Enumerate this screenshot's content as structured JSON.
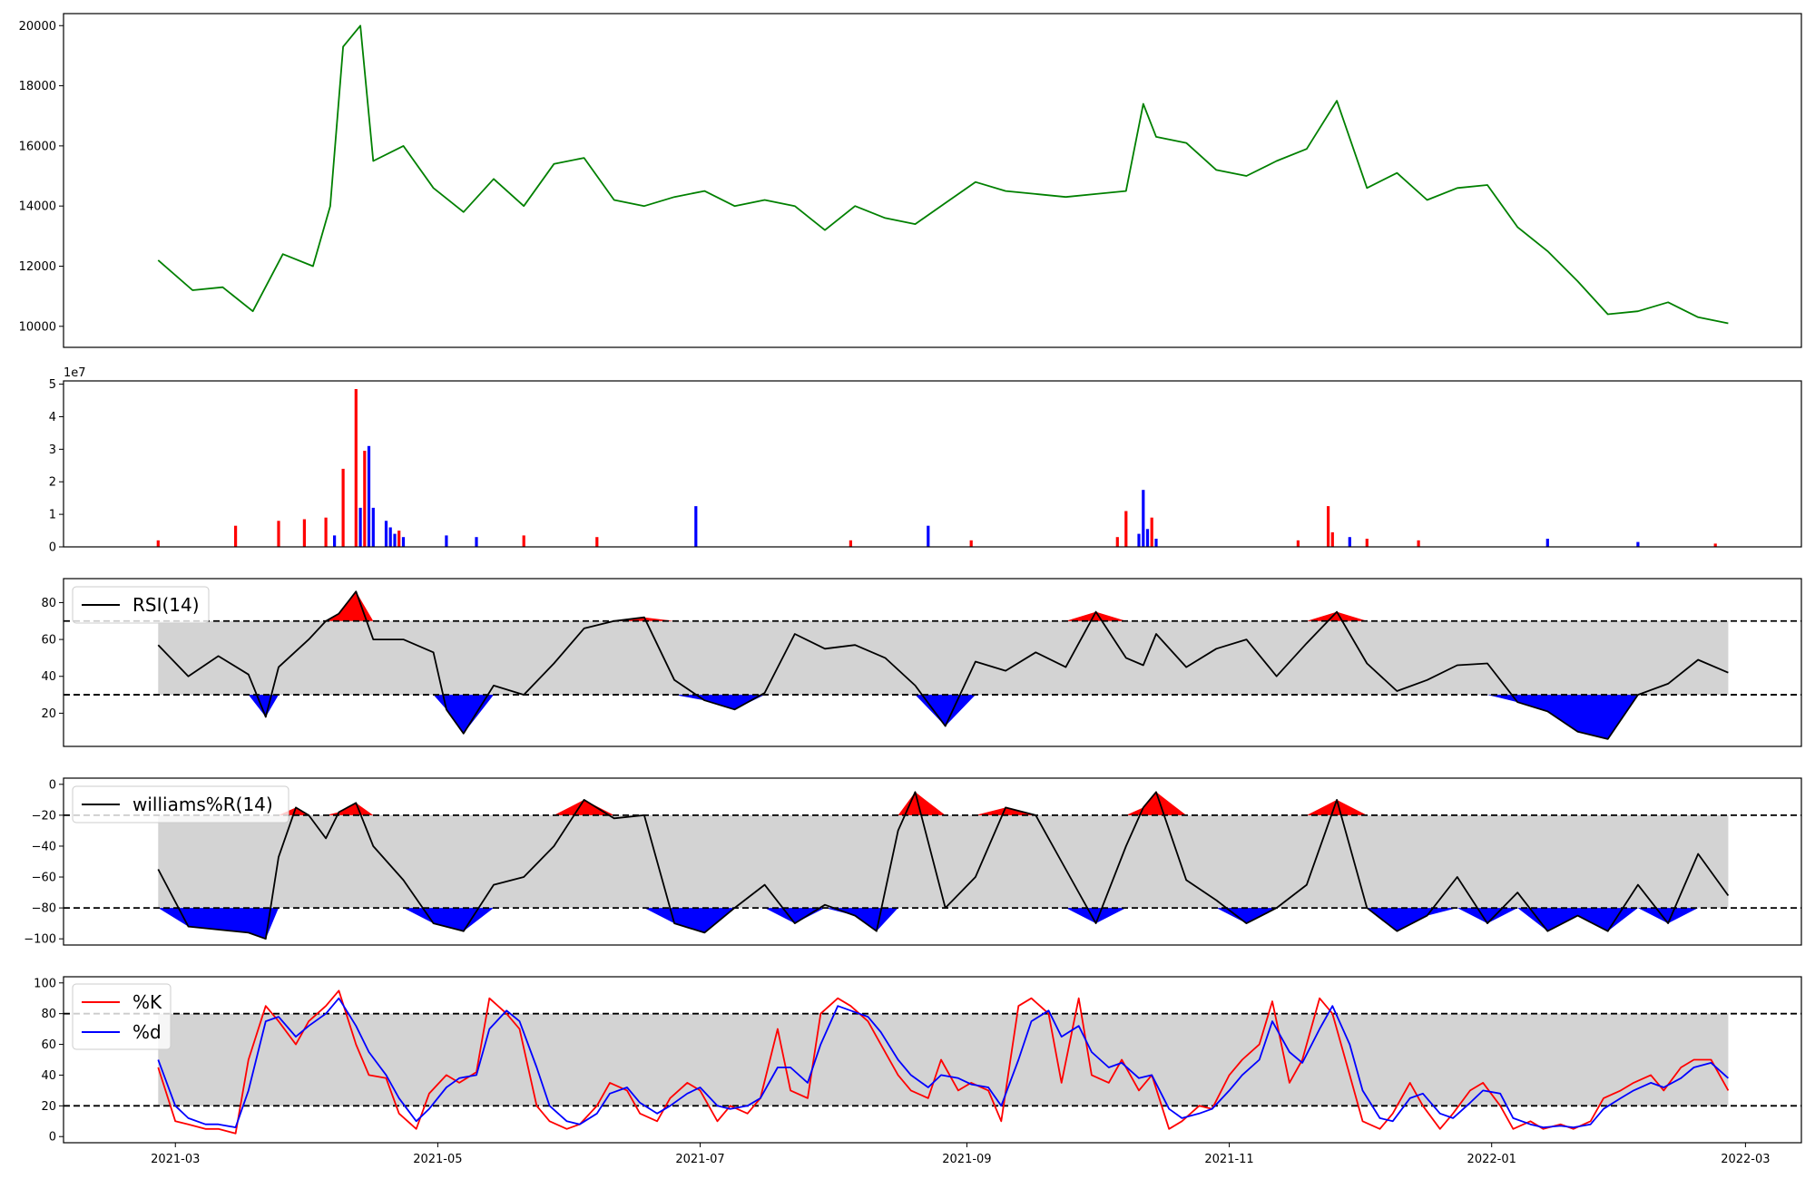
{
  "chart_data": [
    {
      "type": "line",
      "panel": "price",
      "color": "#008000",
      "ylim": [
        9300,
        20400
      ],
      "yticks": [
        "10000",
        "12000",
        "14000",
        "16000",
        "18000",
        "20000"
      ],
      "x": [
        "2021-02-25",
        "2021-03-05",
        "2021-03-12",
        "2021-03-19",
        "2021-03-26",
        "2021-04-02",
        "2021-04-06",
        "2021-04-09",
        "2021-04-13",
        "2021-04-16",
        "2021-04-23",
        "2021-04-30",
        "2021-05-07",
        "2021-05-14",
        "2021-05-21",
        "2021-05-28",
        "2021-06-04",
        "2021-06-11",
        "2021-06-18",
        "2021-06-25",
        "2021-07-02",
        "2021-07-09",
        "2021-07-16",
        "2021-07-23",
        "2021-07-30",
        "2021-08-06",
        "2021-08-13",
        "2021-08-20",
        "2021-08-27",
        "2021-09-03",
        "2021-09-10",
        "2021-09-17",
        "2021-09-24",
        "2021-10-01",
        "2021-10-08",
        "2021-10-12",
        "2021-10-15",
        "2021-10-22",
        "2021-10-29",
        "2021-11-05",
        "2021-11-12",
        "2021-11-19",
        "2021-11-26",
        "2021-12-03",
        "2021-12-10",
        "2021-12-17",
        "2021-12-24",
        "2021-12-31",
        "2022-01-07",
        "2022-01-14",
        "2022-01-21",
        "2022-01-28",
        "2022-02-04",
        "2022-02-11",
        "2022-02-18",
        "2022-02-25"
      ],
      "y": [
        12200,
        11200,
        11300,
        10500,
        12400,
        12000,
        14000,
        19300,
        20000,
        15500,
        16000,
        14600,
        13800,
        14900,
        14000,
        15400,
        15600,
        14200,
        14000,
        14300,
        14500,
        14000,
        14200,
        14000,
        13200,
        14000,
        13600,
        13400,
        14100,
        14800,
        14500,
        14400,
        14300,
        14400,
        14500,
        17400,
        16300,
        16100,
        15200,
        15000,
        15500,
        15900,
        17500,
        14600,
        15100,
        14200,
        14600,
        14700,
        13300,
        12500,
        11500,
        10400,
        10500,
        10800,
        10300,
        10100
      ]
    },
    {
      "type": "bar",
      "panel": "volume",
      "offset_label": "1e7",
      "ylim": [
        0,
        5.1
      ],
      "yticks": [
        "0",
        "1",
        "2",
        "3",
        "4",
        "5"
      ],
      "colors": {
        "up": "#ff0000",
        "down": "#0000ff"
      },
      "x": [
        "2021-02-25",
        "2021-03-15",
        "2021-03-25",
        "2021-03-31",
        "2021-04-05",
        "2021-04-07",
        "2021-04-09",
        "2021-04-12",
        "2021-04-13",
        "2021-04-14",
        "2021-04-15",
        "2021-04-16",
        "2021-04-19",
        "2021-04-20",
        "2021-04-21",
        "2021-04-22",
        "2021-04-23",
        "2021-05-03",
        "2021-05-10",
        "2021-05-21",
        "2021-06-07",
        "2021-06-30",
        "2021-08-05",
        "2021-08-23",
        "2021-09-02",
        "2021-10-06",
        "2021-10-08",
        "2021-10-11",
        "2021-10-12",
        "2021-10-13",
        "2021-10-14",
        "2021-10-15",
        "2021-11-17",
        "2021-11-24",
        "2021-11-25",
        "2021-11-29",
        "2021-12-03",
        "2021-12-15",
        "2022-01-14",
        "2022-02-04",
        "2022-02-22"
      ],
      "values": [
        0.2,
        0.65,
        0.8,
        0.85,
        0.9,
        0.35,
        2.4,
        4.85,
        1.2,
        2.95,
        3.1,
        1.2,
        0.8,
        0.6,
        0.4,
        0.5,
        0.3,
        0.35,
        0.3,
        0.35,
        0.3,
        1.25,
        0.2,
        0.65,
        0.2,
        0.3,
        1.1,
        0.4,
        1.75,
        0.55,
        0.9,
        0.25,
        0.2,
        1.25,
        0.45,
        0.3,
        0.25,
        0.2,
        0.25,
        0.15,
        0.1
      ],
      "direction": [
        "up",
        "up",
        "up",
        "up",
        "up",
        "down",
        "up",
        "up",
        "down",
        "up",
        "down",
        "down",
        "down",
        "down",
        "down",
        "up",
        "down",
        "down",
        "down",
        "up",
        "up",
        "down",
        "up",
        "down",
        "up",
        "up",
        "up",
        "down",
        "down",
        "down",
        "up",
        "down",
        "up",
        "up",
        "up",
        "down",
        "up",
        "up",
        "down",
        "down",
        "up"
      ]
    },
    {
      "type": "line",
      "panel": "rsi",
      "series_name": "RSI(14)",
      "color": "#000000",
      "ylim": [
        2,
        93
      ],
      "yticks": [
        "20",
        "40",
        "60",
        "80"
      ],
      "thresholds": [
        30,
        70
      ],
      "fill_colors": {
        "band": "#d3d3d3",
        "above": "#ff0000",
        "below": "#0000ff"
      },
      "x": [
        "2021-02-25",
        "2021-03-04",
        "2021-03-11",
        "2021-03-18",
        "2021-03-22",
        "2021-03-25",
        "2021-04-01",
        "2021-04-05",
        "2021-04-08",
        "2021-04-12",
        "2021-04-16",
        "2021-04-23",
        "2021-04-30",
        "2021-05-03",
        "2021-05-07",
        "2021-05-14",
        "2021-05-21",
        "2021-05-28",
        "2021-06-04",
        "2021-06-11",
        "2021-06-18",
        "2021-06-25",
        "2021-07-02",
        "2021-07-09",
        "2021-07-16",
        "2021-07-23",
        "2021-07-30",
        "2021-08-06",
        "2021-08-13",
        "2021-08-20",
        "2021-08-27",
        "2021-09-03",
        "2021-09-10",
        "2021-09-17",
        "2021-09-24",
        "2021-10-01",
        "2021-10-08",
        "2021-10-12",
        "2021-10-15",
        "2021-10-22",
        "2021-10-29",
        "2021-11-05",
        "2021-11-12",
        "2021-11-19",
        "2021-11-26",
        "2021-12-03",
        "2021-12-10",
        "2021-12-17",
        "2021-12-24",
        "2021-12-31",
        "2022-01-07",
        "2022-01-14",
        "2022-01-21",
        "2022-01-28",
        "2022-02-04",
        "2022-02-11",
        "2022-02-18",
        "2022-02-25"
      ],
      "y": [
        57,
        40,
        51,
        41,
        18,
        45,
        60,
        70,
        74,
        86,
        60,
        60,
        53,
        22,
        9,
        35,
        30,
        47,
        66,
        70,
        72,
        38,
        27,
        22,
        31,
        63,
        55,
        57,
        50,
        35,
        13,
        48,
        43,
        53,
        45,
        75,
        50,
        46,
        63,
        45,
        55,
        60,
        40,
        58,
        75,
        47,
        32,
        38,
        46,
        47,
        26,
        21,
        10,
        6,
        30,
        36,
        49,
        42
      ]
    },
    {
      "type": "line",
      "panel": "williams",
      "series_name": "williams%R(14)",
      "color": "#000000",
      "ylim": [
        -104,
        4
      ],
      "yticks": [
        "0",
        "−20",
        "−40",
        "−60",
        "−80",
        "−100"
      ],
      "thresholds": [
        -20,
        -80
      ],
      "fill_colors": {
        "band": "#d3d3d3",
        "above": "#ff0000",
        "below": "#0000ff"
      },
      "x": [
        "2021-02-25",
        "2021-03-04",
        "2021-03-11",
        "2021-03-18",
        "2021-03-22",
        "2021-03-25",
        "2021-03-29",
        "2021-04-01",
        "2021-04-05",
        "2021-04-08",
        "2021-04-12",
        "2021-04-16",
        "2021-04-23",
        "2021-04-30",
        "2021-05-07",
        "2021-05-14",
        "2021-05-21",
        "2021-05-28",
        "2021-06-04",
        "2021-06-11",
        "2021-06-18",
        "2021-06-25",
        "2021-07-02",
        "2021-07-09",
        "2021-07-16",
        "2021-07-23",
        "2021-07-30",
        "2021-08-06",
        "2021-08-11",
        "2021-08-16",
        "2021-08-20",
        "2021-08-27",
        "2021-09-03",
        "2021-09-10",
        "2021-09-17",
        "2021-09-24",
        "2021-10-01",
        "2021-10-08",
        "2021-10-12",
        "2021-10-15",
        "2021-10-22",
        "2021-10-29",
        "2021-11-05",
        "2021-11-12",
        "2021-11-19",
        "2021-11-26",
        "2021-12-03",
        "2021-12-10",
        "2021-12-17",
        "2021-12-24",
        "2021-12-31",
        "2022-01-07",
        "2022-01-14",
        "2022-01-21",
        "2022-01-28",
        "2022-02-04",
        "2022-02-11",
        "2022-02-18",
        "2022-02-25"
      ],
      "y": [
        -55,
        -92,
        -94,
        -96,
        -100,
        -47,
        -15,
        -20,
        -35,
        -18,
        -12,
        -40,
        -62,
        -90,
        -95,
        -65,
        -60,
        -40,
        -10,
        -22,
        -20,
        -90,
        -96,
        -80,
        -65,
        -90,
        -78,
        -85,
        -95,
        -30,
        -5,
        -80,
        -60,
        -15,
        -20,
        -55,
        -90,
        -40,
        -15,
        -5,
        -62,
        -75,
        -90,
        -80,
        -65,
        -10,
        -80,
        -95,
        -85,
        -60,
        -90,
        -70,
        -95,
        -85,
        -95,
        -65,
        -90,
        -45,
        -72
      ]
    },
    {
      "type": "line",
      "panel": "stochastic",
      "ylim": [
        -4,
        104
      ],
      "yticks": [
        "0",
        "20",
        "40",
        "60",
        "80",
        "100"
      ],
      "thresholds": [
        20,
        80
      ],
      "fill_colors": {
        "band": "#d3d3d3"
      },
      "x": [
        "2021-02-25",
        "2021-03-01",
        "2021-03-04",
        "2021-03-08",
        "2021-03-11",
        "2021-03-15",
        "2021-03-18",
        "2021-03-22",
        "2021-03-25",
        "2021-03-29",
        "2021-04-01",
        "2021-04-05",
        "2021-04-08",
        "2021-04-12",
        "2021-04-15",
        "2021-04-19",
        "2021-04-22",
        "2021-04-26",
        "2021-04-29",
        "2021-05-03",
        "2021-05-06",
        "2021-05-10",
        "2021-05-13",
        "2021-05-17",
        "2021-05-20",
        "2021-05-24",
        "2021-05-27",
        "2021-05-31",
        "2021-06-03",
        "2021-06-07",
        "2021-06-10",
        "2021-06-14",
        "2021-06-17",
        "2021-06-21",
        "2021-06-24",
        "2021-06-28",
        "2021-07-01",
        "2021-07-05",
        "2021-07-08",
        "2021-07-12",
        "2021-07-15",
        "2021-07-19",
        "2021-07-22",
        "2021-07-26",
        "2021-07-29",
        "2021-08-02",
        "2021-08-05",
        "2021-08-09",
        "2021-08-12",
        "2021-08-16",
        "2021-08-19",
        "2021-08-23",
        "2021-08-26",
        "2021-08-30",
        "2021-09-02",
        "2021-09-06",
        "2021-09-09",
        "2021-09-13",
        "2021-09-16",
        "2021-09-20",
        "2021-09-23",
        "2021-09-27",
        "2021-09-30",
        "2021-10-04",
        "2021-10-07",
        "2021-10-11",
        "2021-10-14",
        "2021-10-18",
        "2021-10-21",
        "2021-10-25",
        "2021-10-28",
        "2021-11-01",
        "2021-11-04",
        "2021-11-08",
        "2021-11-11",
        "2021-11-15",
        "2021-11-18",
        "2021-11-22",
        "2021-11-25",
        "2021-11-29",
        "2021-12-02",
        "2021-12-06",
        "2021-12-09",
        "2021-12-13",
        "2021-12-16",
        "2021-12-20",
        "2021-12-23",
        "2021-12-27",
        "2021-12-30",
        "2022-01-03",
        "2022-01-06",
        "2022-01-10",
        "2022-01-13",
        "2022-01-17",
        "2022-01-20",
        "2022-01-24",
        "2022-01-27",
        "2022-01-31",
        "2022-02-03",
        "2022-02-07",
        "2022-02-10",
        "2022-02-14",
        "2022-02-17",
        "2022-02-21",
        "2022-02-25"
      ],
      "series": [
        {
          "name": "%K",
          "color": "#ff0000",
          "values": [
            45,
            10,
            8,
            5,
            5,
            2,
            50,
            85,
            75,
            60,
            75,
            85,
            95,
            60,
            40,
            38,
            15,
            5,
            28,
            40,
            35,
            42,
            90,
            80,
            70,
            20,
            10,
            5,
            8,
            20,
            35,
            30,
            15,
            10,
            25,
            35,
            30,
            10,
            20,
            15,
            25,
            70,
            30,
            25,
            80,
            90,
            85,
            75,
            60,
            40,
            30,
            25,
            50,
            30,
            35,
            30,
            10,
            85,
            90,
            80,
            35,
            90,
            40,
            35,
            50,
            30,
            40,
            5,
            10,
            20,
            18,
            40,
            50,
            60,
            88,
            35,
            50,
            90,
            80,
            40,
            10,
            5,
            15,
            35,
            20,
            5,
            15,
            30,
            35,
            20,
            5,
            10,
            5,
            8,
            5,
            10,
            25,
            30,
            35,
            40,
            30,
            45,
            50,
            50,
            30
          ]
        },
        {
          "name": "%d",
          "color": "#0000ff",
          "values": [
            50,
            20,
            12,
            8,
            8,
            6,
            30,
            75,
            78,
            65,
            72,
            80,
            90,
            72,
            55,
            40,
            25,
            10,
            18,
            32,
            38,
            40,
            70,
            82,
            75,
            45,
            20,
            10,
            8,
            15,
            28,
            32,
            22,
            15,
            20,
            28,
            32,
            20,
            18,
            20,
            25,
            45,
            45,
            35,
            60,
            85,
            82,
            78,
            68,
            50,
            40,
            32,
            40,
            38,
            34,
            32,
            20,
            50,
            75,
            82,
            65,
            72,
            55,
            45,
            48,
            38,
            40,
            18,
            12,
            15,
            18,
            30,
            40,
            50,
            75,
            55,
            48,
            70,
            85,
            60,
            30,
            12,
            10,
            25,
            28,
            15,
            12,
            22,
            30,
            28,
            12,
            8,
            6,
            7,
            6,
            8,
            18,
            25,
            30,
            35,
            32,
            38,
            45,
            48,
            38
          ]
        }
      ]
    }
  ],
  "x_axis": {
    "ticks": [
      "2021-03-01",
      "2021-05-01",
      "2021-07-01",
      "2021-09-01",
      "2021-11-01",
      "2022-01-01",
      "2022-03-01"
    ],
    "tick_labels": [
      "2021-03",
      "2021-05",
      "2021-07",
      "2021-09",
      "2021-11",
      "2022-01",
      "2022-03"
    ],
    "xlim": [
      "2021-02-03",
      "2022-03-14"
    ]
  }
}
